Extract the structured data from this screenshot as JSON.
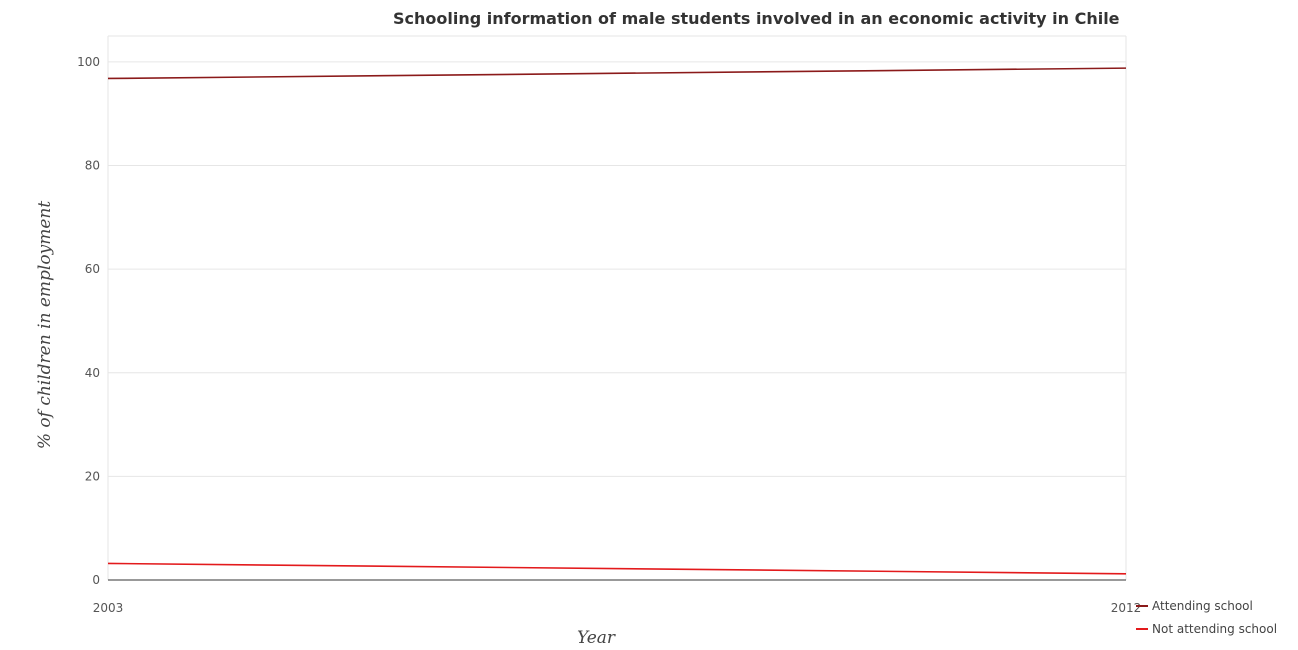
{
  "chart_data": {
    "type": "line",
    "title": "Schooling information of male students involved in an economic activity in Chile",
    "xlabel": "Year",
    "ylabel": "% of children in employment",
    "categories": [
      "2003",
      "2012"
    ],
    "ylim": [
      0,
      105
    ],
    "yticks": [
      0,
      20,
      40,
      60,
      80,
      100
    ],
    "grid": true,
    "legend_position": "bottom-right",
    "series": [
      {
        "name": "Attending school",
        "values": [
          96.8,
          98.8
        ],
        "color": "#8b1a1a"
      },
      {
        "name": "Not attending school",
        "values": [
          3.2,
          1.2
        ],
        "color": "#e31a1c"
      }
    ]
  }
}
